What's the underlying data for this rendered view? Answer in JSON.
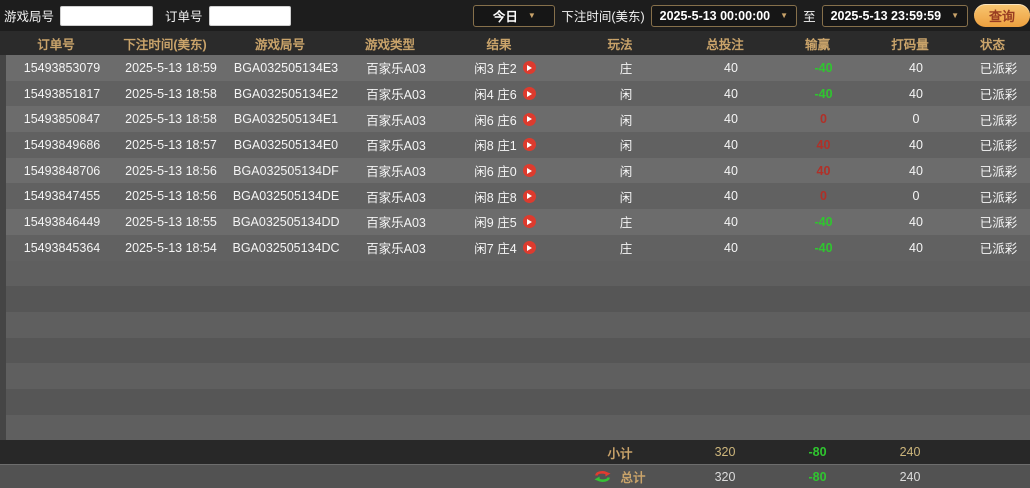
{
  "topbar": {
    "game_round_label": "游戏局号",
    "order_no_label": "订单号",
    "period_selected": "今日",
    "bet_time_label": "下注时间(美东)",
    "start_time": "2025-5-13 00:00:00",
    "to_label": "至",
    "end_time": "2025-5-13 23:59:59",
    "query_button": "查询",
    "dropdown_arrow": "▼"
  },
  "table": {
    "headers": [
      "订单号",
      "下注时间(美东)",
      "游戏局号",
      "游戏类型",
      "结果",
      "玩法",
      "总投注",
      "输赢",
      "打码量",
      "状态"
    ],
    "rows": [
      {
        "order": "15493853079",
        "time": "2025-5-13 18:59",
        "round": "BGA032505134E3",
        "type": "百家乐A03",
        "result": "闲3 庄2",
        "play": "庄",
        "bet": "40",
        "winloss": "-40",
        "wl_color": "green",
        "turnover": "40",
        "status": "已派彩"
      },
      {
        "order": "15493851817",
        "time": "2025-5-13 18:58",
        "round": "BGA032505134E2",
        "type": "百家乐A03",
        "result": "闲4 庄6",
        "play": "闲",
        "bet": "40",
        "winloss": "-40",
        "wl_color": "green",
        "turnover": "40",
        "status": "已派彩"
      },
      {
        "order": "15493850847",
        "time": "2025-5-13 18:58",
        "round": "BGA032505134E1",
        "type": "百家乐A03",
        "result": "闲6 庄6",
        "play": "闲",
        "bet": "40",
        "winloss": "0",
        "wl_color": "red",
        "turnover": "0",
        "status": "已派彩"
      },
      {
        "order": "15493849686",
        "time": "2025-5-13 18:57",
        "round": "BGA032505134E0",
        "type": "百家乐A03",
        "result": "闲8 庄1",
        "play": "闲",
        "bet": "40",
        "winloss": "40",
        "wl_color": "red",
        "turnover": "40",
        "status": "已派彩"
      },
      {
        "order": "15493848706",
        "time": "2025-5-13 18:56",
        "round": "BGA032505134DF",
        "type": "百家乐A03",
        "result": "闲6 庄0",
        "play": "闲",
        "bet": "40",
        "winloss": "40",
        "wl_color": "red",
        "turnover": "40",
        "status": "已派彩"
      },
      {
        "order": "15493847455",
        "time": "2025-5-13 18:56",
        "round": "BGA032505134DE",
        "type": "百家乐A03",
        "result": "闲8 庄8",
        "play": "闲",
        "bet": "40",
        "winloss": "0",
        "wl_color": "red",
        "turnover": "0",
        "status": "已派彩"
      },
      {
        "order": "15493846449",
        "time": "2025-5-13 18:55",
        "round": "BGA032505134DD",
        "type": "百家乐A03",
        "result": "闲9 庄5",
        "play": "庄",
        "bet": "40",
        "winloss": "-40",
        "wl_color": "green",
        "turnover": "40",
        "status": "已派彩"
      },
      {
        "order": "15493845364",
        "time": "2025-5-13 18:54",
        "round": "BGA032505134DC",
        "type": "百家乐A03",
        "result": "闲7 庄4",
        "play": "庄",
        "bet": "40",
        "winloss": "-40",
        "wl_color": "green",
        "turnover": "40",
        "status": "已派彩"
      }
    ],
    "empty_row_count": 7
  },
  "footer": {
    "subtotal": {
      "label": "小计",
      "bet": "320",
      "winloss": "-80",
      "turnover": "240"
    },
    "total": {
      "label": "总计",
      "bet": "320",
      "winloss": "-80",
      "turnover": "240"
    }
  },
  "colors": {
    "accent_tan": "#c9a36a",
    "win_green": "#2fc62f",
    "loss_red": "#b03028",
    "query_btn_gold": "#eda03f",
    "header_bg": "#2b2b2b",
    "row_odd": "#6c6c6c",
    "row_even": "#616161"
  }
}
